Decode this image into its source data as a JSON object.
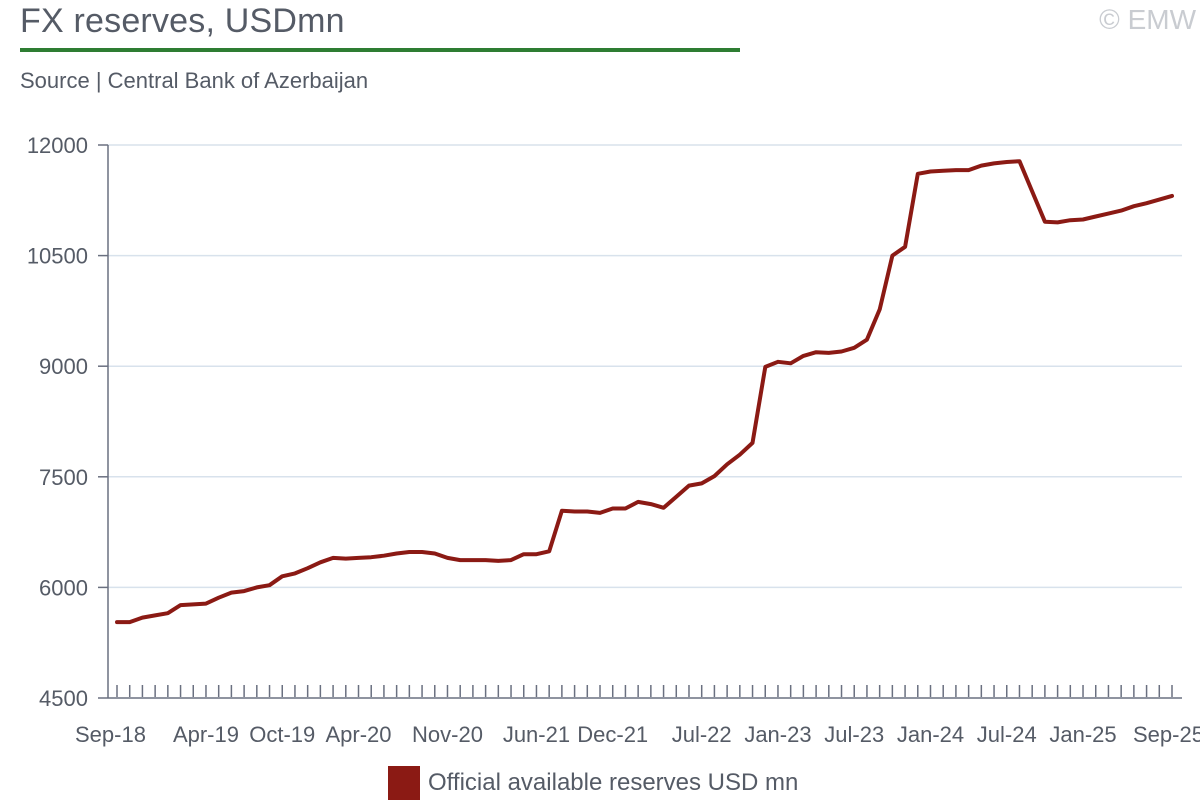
{
  "header": {
    "title": "FX reserves, USDmn",
    "source": "Source | Central Bank of Azerbaijan",
    "copyright": "© EMW"
  },
  "colors": {
    "line": "#8b1a14",
    "title_rule": "#2e7d32",
    "grid": "#d8e2ec",
    "axis": "#6a7080",
    "text": "#555b66"
  },
  "chart_data": {
    "type": "line",
    "x_tick_labels": [
      "Sep-18",
      "Apr-19",
      "Oct-19",
      "Apr-20",
      "Nov-20",
      "Jun-21",
      "Dec-21",
      "Jul-22",
      "Jan-23",
      "Jul-23",
      "Jan-24",
      "Jul-24",
      "Jan-25",
      "Sep-25"
    ],
    "y_tick_labels": [
      "4500",
      "6000",
      "7500",
      "9000",
      "10500",
      "12000"
    ],
    "ylim": [
      4500,
      12000
    ],
    "grid": "horizontal",
    "legend_position": "bottom-center",
    "series": [
      {
        "name": "Official available reserves USD mn",
        "color": "#8b1a14",
        "points": [
          [
            "Sep-18",
            5530
          ],
          [
            "Oct-18",
            5530
          ],
          [
            "Nov-18",
            5590
          ],
          [
            "Dec-18",
            5620
          ],
          [
            "Jan-19",
            5650
          ],
          [
            "Feb-19",
            5760
          ],
          [
            "Mar-19",
            5770
          ],
          [
            "Apr-19",
            5780
          ],
          [
            "May-19",
            5860
          ],
          [
            "Jun-19",
            5930
          ],
          [
            "Jul-19",
            5950
          ],
          [
            "Aug-19",
            6000
          ],
          [
            "Sep-19",
            6030
          ],
          [
            "Oct-19",
            6150
          ],
          [
            "Nov-19",
            6190
          ],
          [
            "Dec-19",
            6260
          ],
          [
            "Jan-20",
            6340
          ],
          [
            "Feb-20",
            6400
          ],
          [
            "Mar-20",
            6390
          ],
          [
            "Apr-20",
            6400
          ],
          [
            "May-20",
            6410
          ],
          [
            "Jun-20",
            6430
          ],
          [
            "Jul-20",
            6460
          ],
          [
            "Aug-20",
            6480
          ],
          [
            "Sep-20",
            6480
          ],
          [
            "Oct-20",
            6460
          ],
          [
            "Nov-20",
            6400
          ],
          [
            "Dec-20",
            6370
          ],
          [
            "Jan-21",
            6370
          ],
          [
            "Feb-21",
            6370
          ],
          [
            "Mar-21",
            6360
          ],
          [
            "Apr-21",
            6370
          ],
          [
            "May-21",
            6450
          ],
          [
            "Jun-21",
            6450
          ],
          [
            "Jul-21",
            6490
          ],
          [
            "Aug-21",
            7040
          ],
          [
            "Sep-21",
            7030
          ],
          [
            "Oct-21",
            7030
          ],
          [
            "Nov-21",
            7010
          ],
          [
            "Dec-21",
            7070
          ],
          [
            "Jan-22",
            7070
          ],
          [
            "Feb-22",
            7160
          ],
          [
            "Mar-22",
            7130
          ],
          [
            "Apr-22",
            7080
          ],
          [
            "May-22",
            7230
          ],
          [
            "Jun-22",
            7380
          ],
          [
            "Jul-22",
            7410
          ],
          [
            "Aug-22",
            7510
          ],
          [
            "Sep-22",
            7670
          ],
          [
            "Oct-22",
            7800
          ],
          [
            "Nov-22",
            7960
          ],
          [
            "Dec-22",
            8990
          ],
          [
            "Jan-23",
            9060
          ],
          [
            "Feb-23",
            9040
          ],
          [
            "Mar-23",
            9140
          ],
          [
            "Apr-23",
            9190
          ],
          [
            "May-23",
            9180
          ],
          [
            "Jun-23",
            9200
          ],
          [
            "Jul-23",
            9250
          ],
          [
            "Aug-23",
            9360
          ],
          [
            "Sep-23",
            9770
          ],
          [
            "Oct-23",
            10500
          ],
          [
            "Nov-23",
            10620
          ],
          [
            "Dec-23",
            11610
          ],
          [
            "Jan-24",
            11640
          ],
          [
            "Feb-24",
            11650
          ],
          [
            "Mar-24",
            11660
          ],
          [
            "Apr-24",
            11660
          ],
          [
            "May-24",
            11720
          ],
          [
            "Jun-24",
            11750
          ],
          [
            "Jul-24",
            11770
          ],
          [
            "Aug-24",
            11780
          ],
          [
            "Sep-24",
            11370
          ],
          [
            "Oct-24",
            10960
          ],
          [
            "Nov-24",
            10950
          ],
          [
            "Dec-24",
            10980
          ],
          [
            "Jan-25",
            10990
          ],
          [
            "Feb-25",
            11030
          ],
          [
            "Mar-25",
            11070
          ],
          [
            "Apr-25",
            11110
          ],
          [
            "May-25",
            11170
          ],
          [
            "Jun-25",
            11210
          ],
          [
            "Jul-25",
            11260
          ],
          [
            "Aug-25",
            11310
          ]
        ]
      }
    ]
  }
}
